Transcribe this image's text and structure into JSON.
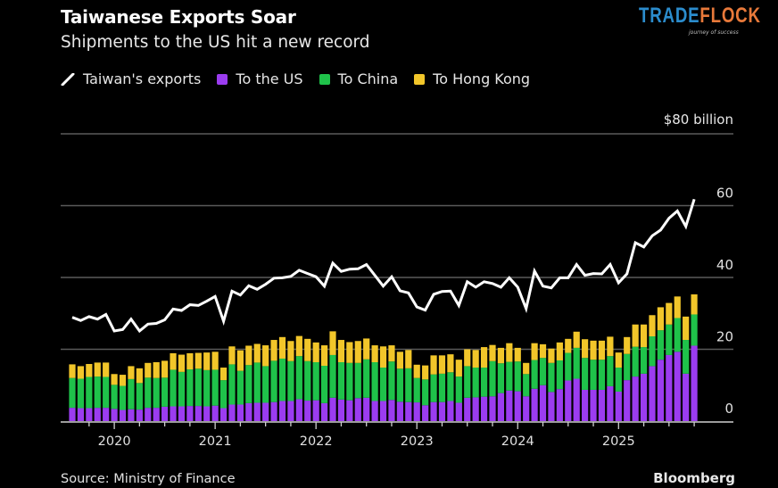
{
  "title": "Taiwanese Exports Soar",
  "subtitle": "Shipments to the US hit a new record",
  "legend": [
    {
      "label": "Taiwan's exports",
      "color": "#ffffff",
      "icon": "line-icon"
    },
    {
      "label": "To the US",
      "color": "#9b3cf0"
    },
    {
      "label": "To China",
      "color": "#1fc24a"
    },
    {
      "label": "To Hong Kong",
      "color": "#f2c62a"
    }
  ],
  "source": "Source: Ministry of Finance",
  "brand": "Bloomberg",
  "logo": {
    "text_a": "TRADE",
    "text_b": "FLOCK",
    "tagline": "journey of success"
  },
  "chart_data": {
    "type": "bar",
    "stacked": true,
    "title": "Taiwanese Exports Soar",
    "ylabel": "",
    "y_unit_label": "$80 billion",
    "ylim": [
      0,
      80
    ],
    "yticks": [
      "0",
      "20",
      "40",
      "60"
    ],
    "y_axis_position": "right",
    "grid": true,
    "legend_position": "top-left",
    "xticks": [
      "2020",
      "2021",
      "2022",
      "2023",
      "2024",
      "2025"
    ],
    "x": [
      "2019-08",
      "2019-09",
      "2019-10",
      "2019-11",
      "2019-12",
      "2020-01",
      "2020-02",
      "2020-03",
      "2020-04",
      "2020-05",
      "2020-06",
      "2020-07",
      "2020-08",
      "2020-09",
      "2020-10",
      "2020-11",
      "2020-12",
      "2021-01",
      "2021-02",
      "2021-03",
      "2021-04",
      "2021-05",
      "2021-06",
      "2021-07",
      "2021-08",
      "2021-09",
      "2021-10",
      "2021-11",
      "2021-12",
      "2022-01",
      "2022-02",
      "2022-03",
      "2022-04",
      "2022-05",
      "2022-06",
      "2022-07",
      "2022-08",
      "2022-09",
      "2022-10",
      "2022-11",
      "2022-12",
      "2023-01",
      "2023-02",
      "2023-03",
      "2023-04",
      "2023-05",
      "2023-06",
      "2023-07",
      "2023-08",
      "2023-09",
      "2023-10",
      "2023-11",
      "2023-12",
      "2024-01",
      "2024-02",
      "2024-03",
      "2024-04",
      "2024-05",
      "2024-06",
      "2024-07",
      "2024-08",
      "2024-09",
      "2024-10",
      "2024-11",
      "2024-12",
      "2025-01",
      "2025-02",
      "2025-03",
      "2025-04",
      "2025-05",
      "2025-06",
      "2025-07",
      "2025-08",
      "2025-09",
      "2025-10"
    ],
    "series": [
      {
        "name": "To the US",
        "kind": "bar",
        "color": "#9b3cf0",
        "values": [
          3.7,
          3.6,
          3.6,
          3.7,
          3.7,
          3.4,
          3.1,
          3.3,
          3.2,
          3.7,
          3.7,
          4.0,
          4.1,
          4.1,
          4.2,
          4.2,
          4.1,
          4.3,
          3.6,
          4.6,
          4.6,
          5.0,
          5.1,
          5.1,
          5.3,
          5.6,
          5.6,
          6.1,
          5.7,
          5.8,
          5.0,
          6.5,
          6.0,
          5.8,
          6.4,
          6.5,
          5.6,
          5.6,
          5.9,
          5.4,
          5.3,
          5.2,
          4.4,
          5.3,
          5.3,
          5.6,
          5.1,
          6.5,
          6.6,
          6.8,
          6.9,
          7.8,
          8.5,
          8.3,
          6.9,
          9.0,
          10.0,
          8.1,
          8.9,
          11.3,
          11.8,
          8.7,
          8.7,
          8.7,
          9.7,
          8.2,
          11.4,
          12.4,
          13.2,
          15.3,
          17.1,
          18.4,
          19.3,
          13.2,
          21.0
        ]
      },
      {
        "name": "To China",
        "kind": "bar",
        "color": "#1fc24a",
        "values": [
          8.3,
          8.2,
          8.7,
          8.7,
          8.6,
          6.7,
          6.7,
          8.4,
          7.4,
          8.4,
          8.3,
          8.1,
          10.2,
          9.6,
          10.2,
          10.4,
          10.1,
          10.0,
          7.8,
          11.2,
          9.4,
          10.6,
          11.2,
          10.2,
          11.5,
          11.8,
          11.1,
          12.0,
          11.0,
          10.6,
          10.4,
          11.9,
          10.4,
          10.4,
          9.8,
          10.7,
          10.8,
          9.3,
          10.7,
          9.2,
          9.4,
          6.8,
          7.2,
          7.7,
          7.9,
          8.0,
          7.3,
          8.8,
          8.3,
          8.1,
          9.8,
          8.3,
          8.0,
          8.3,
          6.2,
          8.0,
          7.6,
          8.1,
          8.0,
          7.7,
          8.6,
          8.9,
          8.4,
          8.4,
          8.4,
          6.7,
          7.3,
          8.3,
          7.4,
          8.3,
          8.2,
          8.5,
          9.4,
          9.4,
          8.7
        ]
      },
      {
        "name": "To Hong Kong",
        "kind": "bar",
        "color": "#f2c62a",
        "values": [
          3.8,
          3.5,
          3.6,
          3.9,
          4.0,
          3.0,
          3.1,
          3.6,
          4.1,
          4.1,
          4.4,
          4.7,
          4.6,
          4.8,
          4.5,
          4.4,
          4.9,
          5.0,
          3.5,
          5.0,
          5.7,
          5.4,
          5.2,
          5.8,
          5.8,
          6.0,
          5.6,
          5.6,
          6.2,
          5.5,
          5.7,
          6.6,
          6.2,
          5.8,
          6.1,
          5.8,
          4.7,
          5.9,
          4.5,
          4.7,
          5.1,
          3.7,
          3.9,
          5.3,
          5.1,
          5.0,
          4.7,
          4.7,
          4.9,
          5.7,
          4.5,
          4.3,
          5.2,
          3.8,
          3.1,
          4.7,
          3.8,
          4.0,
          5.0,
          3.9,
          4.5,
          5.2,
          5.3,
          5.3,
          5.4,
          4.2,
          4.7,
          6.2,
          6.3,
          5.9,
          6.4,
          6.0,
          6.0,
          6.5,
          5.6
        ]
      },
      {
        "name": "Taiwan's exports",
        "kind": "line",
        "color": "#ffffff",
        "values": [
          28.9,
          28.0,
          29.1,
          28.4,
          29.7,
          25.1,
          25.5,
          28.4,
          25.1,
          27.0,
          27.2,
          28.2,
          31.2,
          30.8,
          32.4,
          32.2,
          33.4,
          34.7,
          27.8,
          36.2,
          35.1,
          37.7,
          36.7,
          38.1,
          39.8,
          39.9,
          40.3,
          42.0,
          41.1,
          40.2,
          37.6,
          44.0,
          41.7,
          42.3,
          42.4,
          43.6,
          40.6,
          37.6,
          40.2,
          36.3,
          35.7,
          31.8,
          30.9,
          35.3,
          36.1,
          36.2,
          32.2,
          38.8,
          37.3,
          38.8,
          38.3,
          37.3,
          39.9,
          37.3,
          31.3,
          41.8,
          37.6,
          37.1,
          39.9,
          39.9,
          43.6,
          40.6,
          41.1,
          41.0,
          43.6,
          38.5,
          41.0,
          49.7,
          48.5,
          51.6,
          53.2,
          56.5,
          58.5,
          54.2,
          61.8
        ]
      }
    ]
  }
}
